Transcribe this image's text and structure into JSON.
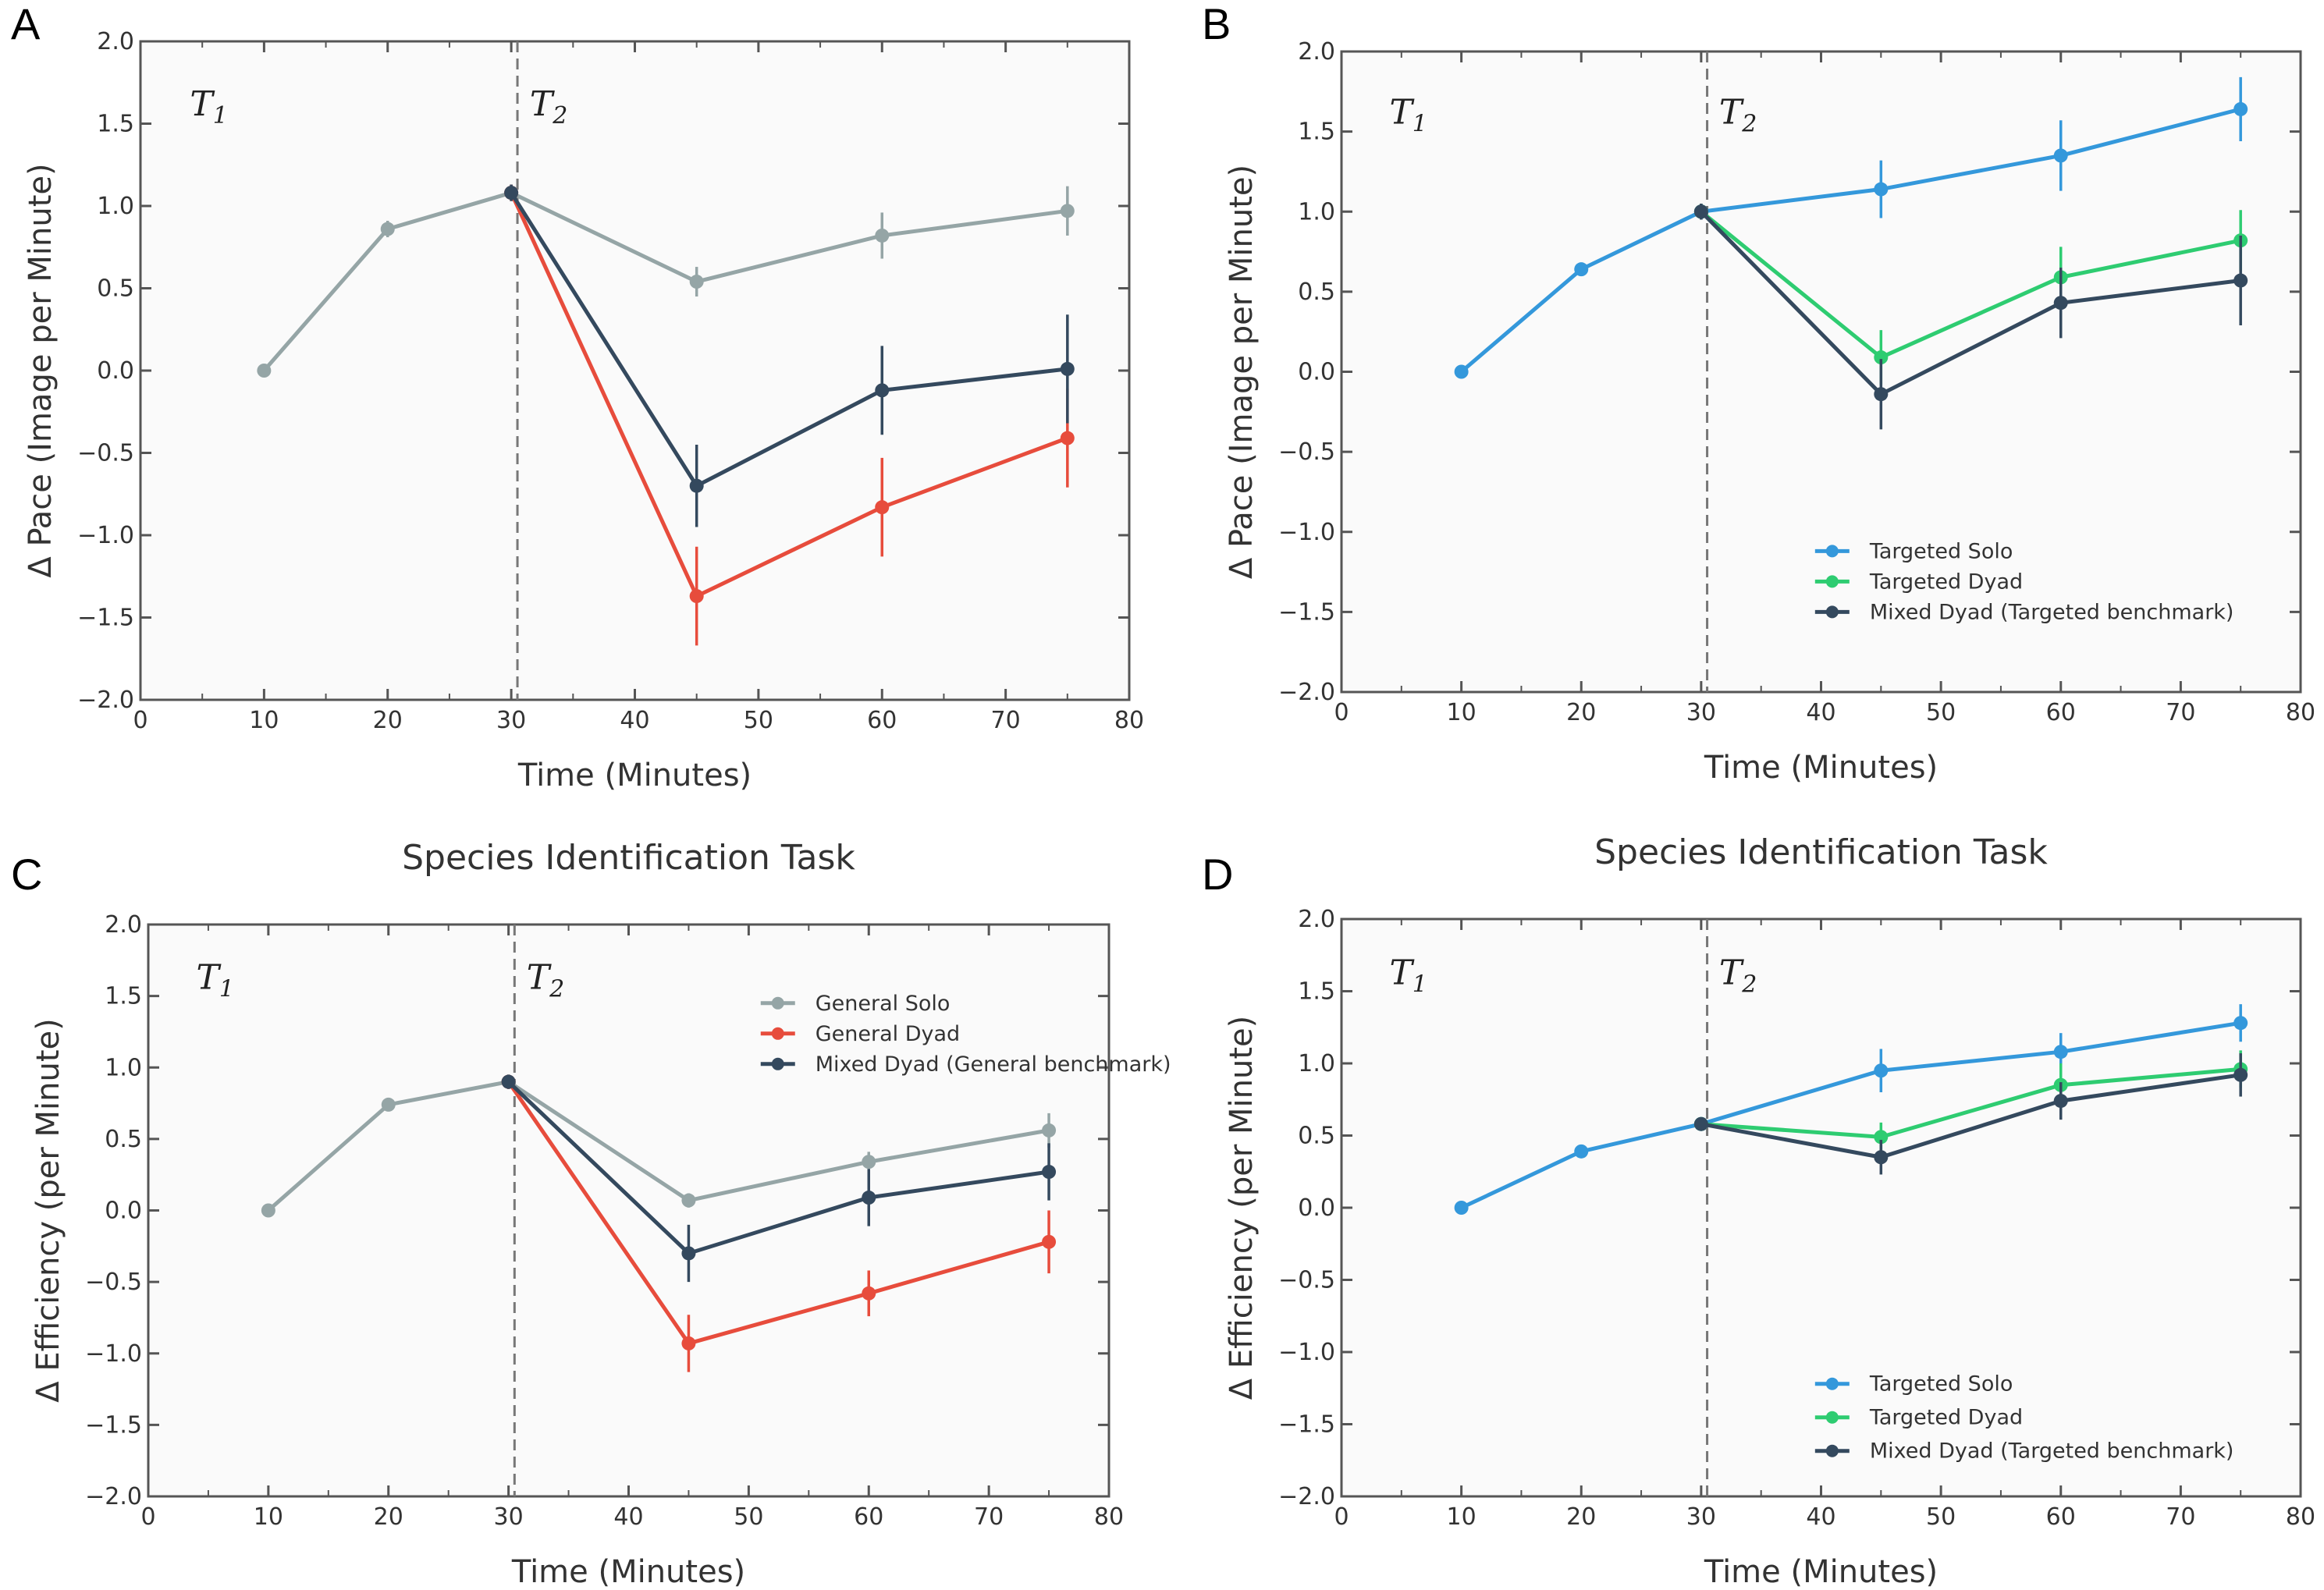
{
  "colors": {
    "general_solo": "#95a5a6",
    "general_dyad": "#e74c3c",
    "mixed": "#34495e",
    "targeted_solo": "#3498db",
    "targeted_dyad": "#2ecc71"
  },
  "chart_data": [
    {
      "panel": "A",
      "type": "line",
      "title": "",
      "xlabel": "Time (Minutes)",
      "ylabel": "Δ Pace (Image per Minute)",
      "xlim": [
        0,
        80
      ],
      "ylim": [
        -2,
        2
      ],
      "xticks": [
        0,
        10,
        20,
        30,
        40,
        50,
        60,
        70,
        80
      ],
      "yticks": [
        -2.0,
        -1.5,
        -1.0,
        -0.5,
        0.0,
        0.5,
        1.0,
        1.5,
        2.0
      ],
      "annotations": {
        "t1": "T",
        "t1_sub": "1",
        "t2": "T",
        "t2_sub": "2",
        "vline_x": 30.5
      },
      "legend": null,
      "series": [
        {
          "name": "",
          "color": "#95a5a6",
          "x": [
            10,
            20,
            30,
            45,
            60,
            75
          ],
          "y": [
            0,
            0.86,
            1.08,
            0.54,
            0.82,
            0.97
          ],
          "err": [
            0.02,
            0.05,
            0.05,
            0.09,
            0.14,
            0.15
          ]
        },
        {
          "name": "",
          "color": "#e74c3c",
          "x": [
            30,
            45,
            60,
            75
          ],
          "y": [
            1.08,
            -1.37,
            -0.83,
            -0.41
          ],
          "err": [
            0.05,
            0.3,
            0.3,
            0.3
          ]
        },
        {
          "name": "",
          "color": "#34495e",
          "x": [
            30,
            45,
            60,
            75
          ],
          "y": [
            1.08,
            -0.7,
            -0.12,
            0.01
          ],
          "err": [
            0.05,
            0.25,
            0.27,
            0.33
          ]
        }
      ]
    },
    {
      "panel": "B",
      "type": "line",
      "title": "",
      "xlabel": "Time (Minutes)",
      "ylabel": "Δ Pace (Image per Minute)",
      "xlim": [
        0,
        80
      ],
      "ylim": [
        -2,
        2
      ],
      "xticks": [
        0,
        10,
        20,
        30,
        40,
        50,
        60,
        70,
        80
      ],
      "yticks": [
        -2.0,
        -1.5,
        -1.0,
        -0.5,
        0.0,
        0.5,
        1.0,
        1.5,
        2.0
      ],
      "annotations": {
        "t1": "T",
        "t1_sub": "1",
        "t2": "T",
        "t2_sub": "2",
        "vline_x": 30.5
      },
      "legend": "lower-right",
      "series": [
        {
          "name": "Targeted Solo",
          "color": "#3498db",
          "x": [
            10,
            20,
            30,
            45,
            60,
            75
          ],
          "y": [
            0,
            0.64,
            1.0,
            1.14,
            1.35,
            1.64
          ],
          "err": [
            0.02,
            0.04,
            0.05,
            0.18,
            0.22,
            0.2
          ]
        },
        {
          "name": "Targeted Dyad",
          "color": "#2ecc71",
          "x": [
            30,
            45,
            60,
            75
          ],
          "y": [
            1.0,
            0.09,
            0.59,
            0.82
          ],
          "err": [
            0.05,
            0.17,
            0.19,
            0.19
          ]
        },
        {
          "name": "Mixed Dyad (Targeted benchmark)",
          "color": "#34495e",
          "x": [
            30,
            45,
            60,
            75
          ],
          "y": [
            1.0,
            -0.14,
            0.43,
            0.57
          ],
          "err": [
            0.05,
            0.22,
            0.22,
            0.28
          ]
        }
      ]
    },
    {
      "panel": "C",
      "type": "line",
      "title": "Species Identification Task",
      "xlabel": "Time (Minutes)",
      "ylabel": "Δ Efficiency (per Minute)",
      "xlim": [
        0,
        80
      ],
      "ylim": [
        -2,
        2
      ],
      "xticks": [
        0,
        10,
        20,
        30,
        40,
        50,
        60,
        70,
        80
      ],
      "yticks": [
        -2.0,
        -1.5,
        -1.0,
        -0.5,
        0.0,
        0.5,
        1.0,
        1.5,
        2.0
      ],
      "annotations": {
        "t1": "T",
        "t1_sub": "1",
        "t2": "T",
        "t2_sub": "2",
        "vline_x": 30.5
      },
      "legend": "upper-right",
      "series": [
        {
          "name": "General Solo",
          "color": "#95a5a6",
          "x": [
            10,
            20,
            30,
            45,
            60,
            75
          ],
          "y": [
            0,
            0.74,
            0.9,
            0.07,
            0.34,
            0.56
          ],
          "err": [
            0.02,
            0.04,
            0.05,
            0.05,
            0.07,
            0.12
          ]
        },
        {
          "name": "General Dyad",
          "color": "#e74c3c",
          "x": [
            30,
            45,
            60,
            75
          ],
          "y": [
            0.9,
            -0.93,
            -0.58,
            -0.22
          ],
          "err": [
            0.05,
            0.2,
            0.16,
            0.22
          ]
        },
        {
          "name": "Mixed Dyad (General benchmark)",
          "color": "#34495e",
          "x": [
            30,
            45,
            60,
            75
          ],
          "y": [
            0.9,
            -0.3,
            0.09,
            0.27
          ],
          "err": [
            0.05,
            0.2,
            0.2,
            0.2
          ]
        }
      ]
    },
    {
      "panel": "D",
      "type": "line",
      "title": "Species Identification Task",
      "xlabel": "Time (Minutes)",
      "ylabel": "Δ Efficiency (per Minute)",
      "xlim": [
        0,
        80
      ],
      "ylim": [
        -2,
        2
      ],
      "xticks": [
        0,
        10,
        20,
        30,
        40,
        50,
        60,
        70,
        80
      ],
      "yticks": [
        -2.0,
        -1.5,
        -1.0,
        -0.5,
        0.0,
        0.5,
        1.0,
        1.5,
        2.0
      ],
      "annotations": {
        "t1": "T",
        "t1_sub": "1",
        "t2": "T",
        "t2_sub": "2",
        "vline_x": 30.5
      },
      "legend": "lower-right",
      "series": [
        {
          "name": "Targeted Solo",
          "color": "#3498db",
          "x": [
            10,
            20,
            30,
            45,
            60,
            75
          ],
          "y": [
            0,
            0.39,
            0.58,
            0.95,
            1.08,
            1.28
          ],
          "err": [
            0.02,
            0.03,
            0.03,
            0.15,
            0.13,
            0.13
          ]
        },
        {
          "name": "Targeted Dyad",
          "color": "#2ecc71",
          "x": [
            30,
            45,
            60,
            75
          ],
          "y": [
            0.58,
            0.49,
            0.85,
            0.96
          ],
          "err": [
            0.03,
            0.1,
            0.15,
            0.13
          ]
        },
        {
          "name": "Mixed Dyad (Targeted benchmark)",
          "color": "#34495e",
          "x": [
            30,
            45,
            60,
            75
          ],
          "y": [
            0.58,
            0.35,
            0.74,
            0.92
          ],
          "err": [
            0.03,
            0.12,
            0.13,
            0.15
          ]
        }
      ]
    }
  ]
}
